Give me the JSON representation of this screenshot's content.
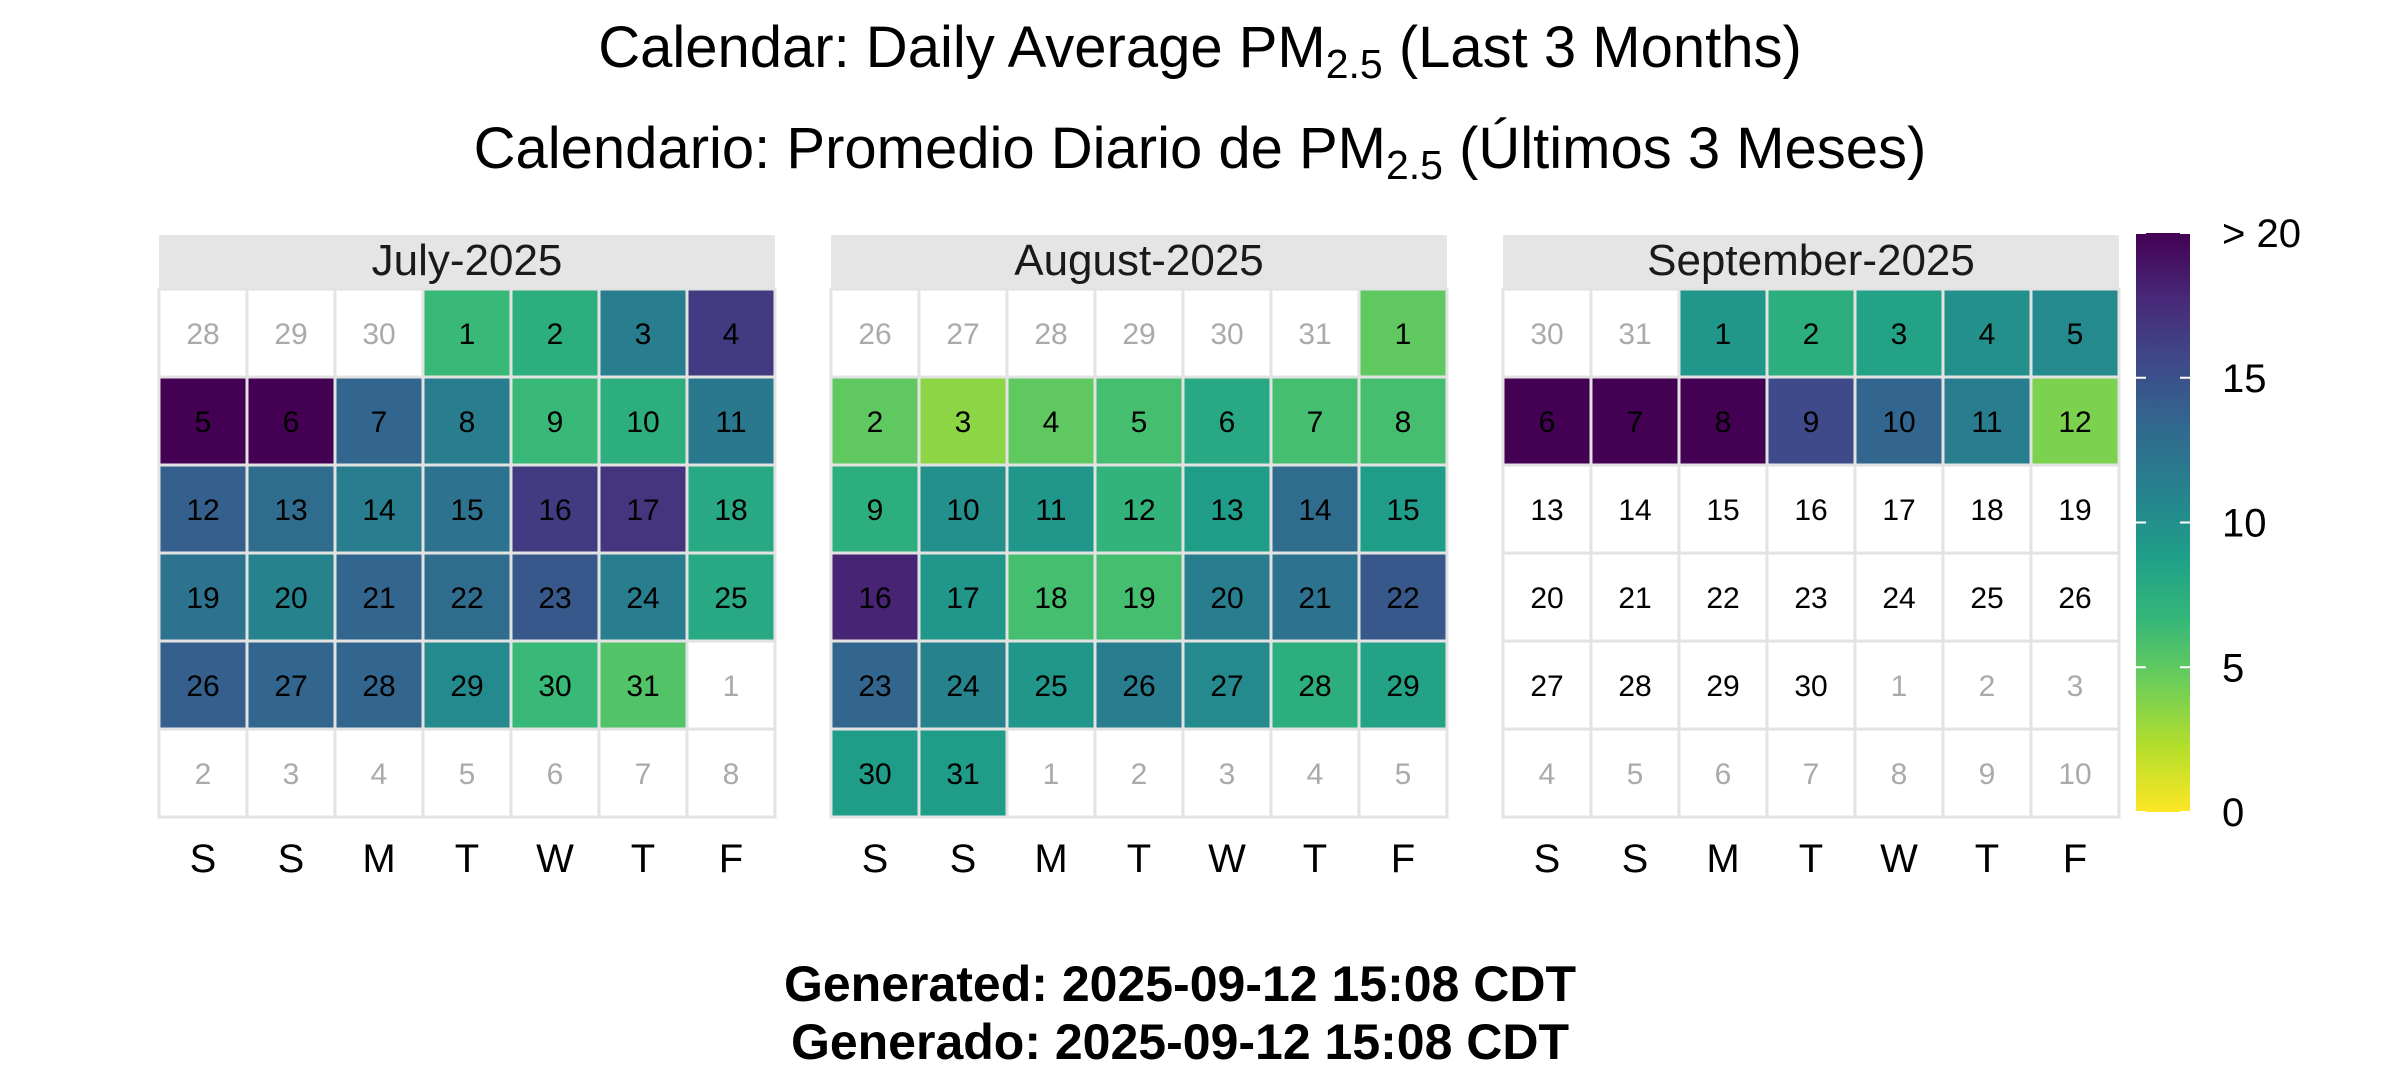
{
  "title_en": {
    "prefix": "Calendar: Daily Average PM",
    "subscript": "2.5",
    "suffix": " (Last 3 Months)"
  },
  "title_es": {
    "prefix": "Calendario: Promedio Diario de PM",
    "subscript": "2.5",
    "suffix": " (Últimos 3 Meses)"
  },
  "footer": {
    "line1": "Generated: 2025-09-12 15:08 CDT",
    "line2": "Generado: 2025-09-12 15:08 CDT"
  },
  "colors": {
    "gradient": [
      "#fde725",
      "#b5de2b",
      "#6ece58",
      "#35b779",
      "#1f9e89",
      "#26828e",
      "#31688e",
      "#3e4989",
      "#482878",
      "#440154"
    ],
    "strip_bg": "#e5e5e5",
    "grid_line": "#e3e3e3",
    "out_of_month_text": "#aaaaaa"
  },
  "chart_data": {
    "type": "heatmap",
    "weekday_labels": [
      "S",
      "S",
      "M",
      "T",
      "W",
      "T",
      "F"
    ],
    "scale": {
      "min": 0,
      "max": 20,
      "ticks": [
        0,
        5,
        10,
        15,
        20
      ],
      "tick_labels": [
        "0",
        "5",
        "10",
        "15",
        "> 20"
      ]
    },
    "months": [
      {
        "label": "July-2025",
        "leading_days": [
          28,
          29,
          30
        ],
        "trailing_days": [
          1,
          2,
          3,
          4,
          5,
          6,
          7,
          8
        ],
        "values": [
          6.5,
          7.5,
          11.5,
          16.5,
          20,
          20,
          13.5,
          11.5,
          6.5,
          7.5,
          12,
          14,
          13,
          11.5,
          12.5,
          16.5,
          17,
          8,
          12.5,
          11,
          13.5,
          13,
          14.5,
          11.5,
          8,
          14,
          13.5,
          13.5,
          10.5,
          6.5,
          5.5
        ]
      },
      {
        "label": "August-2025",
        "leading_days": [
          26,
          27,
          28,
          29,
          30,
          31
        ],
        "trailing_days": [
          1,
          2,
          3,
          4,
          5
        ],
        "values": [
          5,
          5,
          3.5,
          5,
          6,
          8,
          6,
          6,
          7.5,
          10,
          9.5,
          7,
          9,
          13,
          9,
          18,
          9.5,
          6,
          6,
          11.5,
          12.5,
          14.5,
          13.5,
          11,
          9.5,
          11.5,
          10.5,
          7.5,
          8.5,
          9,
          9
        ]
      },
      {
        "label": "September-2025",
        "leading_days": [
          30,
          31
        ],
        "trailing_days": [
          1,
          2,
          3,
          4,
          5,
          6,
          7,
          8,
          9,
          10
        ],
        "values": [
          9.5,
          7.5,
          8.5,
          10,
          10.5,
          20,
          20,
          20,
          15.5,
          13.5,
          11.5,
          4,
          null,
          null,
          null,
          null,
          null,
          null,
          null,
          null,
          null,
          null,
          null,
          null,
          null,
          null,
          null,
          null,
          null,
          null
        ]
      }
    ]
  }
}
